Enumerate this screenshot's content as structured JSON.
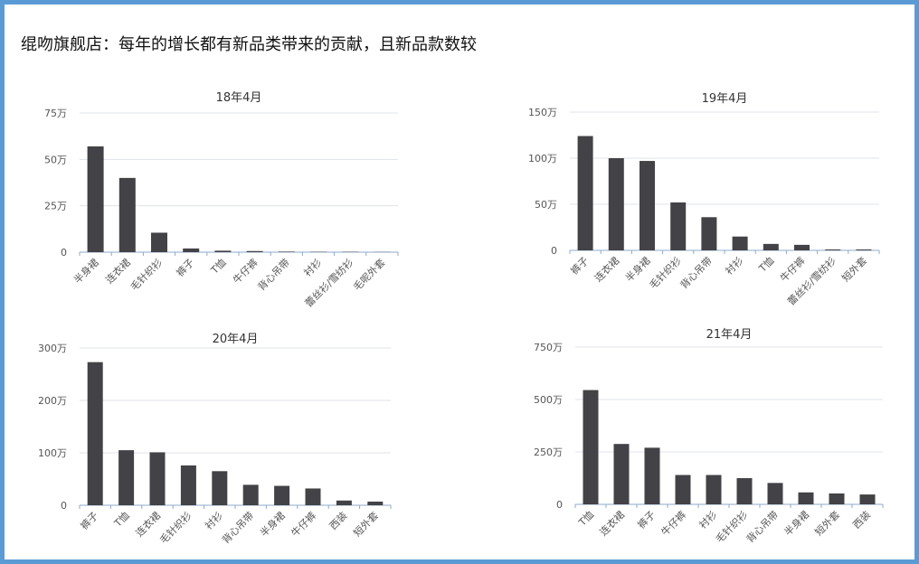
{
  "page": {
    "title": "绲吻旗舰店：每年的增长都有新品类带来的贡献，且新品款数较",
    "bar_color": "#434246",
    "grid_color": "#dfe3ea",
    "axis_color": "#8fa9c8",
    "text_color": "#555555",
    "border_color": "#5b9bd5"
  },
  "chart_data": [
    {
      "type": "bar",
      "title": "18年4月",
      "categories": [
        "半身裙",
        "连衣裙",
        "毛针织衫",
        "裤子",
        "T恤",
        "牛仔裤",
        "背心吊带",
        "衬衫",
        "蕾丝衫/雪纺衫",
        "毛呢外套"
      ],
      "values": [
        57,
        40,
        10.5,
        2,
        0.8,
        0.6,
        0.3,
        0.2,
        0.2,
        0.1
      ],
      "yticks": [
        "0",
        "25万",
        "50万",
        "75万"
      ],
      "ylim": [
        0,
        75
      ],
      "grid": true
    },
    {
      "type": "bar",
      "title": "19年4月",
      "categories": [
        "裤子",
        "连衣裙",
        "半身裙",
        "毛针织衫",
        "背心吊带",
        "衬衫",
        "T恤",
        "牛仔裤",
        "蕾丝衫/雪纺衫",
        "短外套"
      ],
      "values": [
        124,
        100,
        97,
        52,
        36,
        15,
        7,
        6,
        1,
        1
      ],
      "yticks": [
        "0",
        "50万",
        "100万",
        "150万"
      ],
      "ylim": [
        0,
        150
      ],
      "grid": true
    },
    {
      "type": "bar",
      "title": "20年4月",
      "categories": [
        "裤子",
        "T恤",
        "连衣裙",
        "毛针织衫",
        "衬衫",
        "背心吊带",
        "半身裙",
        "牛仔裤",
        "西装",
        "短外套"
      ],
      "values": [
        273,
        105,
        101,
        76,
        65,
        39,
        37,
        32,
        9,
        7
      ],
      "yticks": [
        "0",
        "100万",
        "200万",
        "300万"
      ],
      "ylim": [
        0,
        300
      ],
      "grid": true
    },
    {
      "type": "bar",
      "title": "21年4月",
      "categories": [
        "T恤",
        "连衣裙",
        "裤子",
        "牛仔裤",
        "衬衫",
        "毛针织衫",
        "背心吊带",
        "半身裙",
        "短外套",
        "西装"
      ],
      "values": [
        545,
        288,
        270,
        140,
        140,
        125,
        102,
        57,
        52,
        47
      ],
      "yticks": [
        "0",
        "250万",
        "500万",
        "750万"
      ],
      "ylim": [
        0,
        750
      ],
      "grid": true
    }
  ]
}
